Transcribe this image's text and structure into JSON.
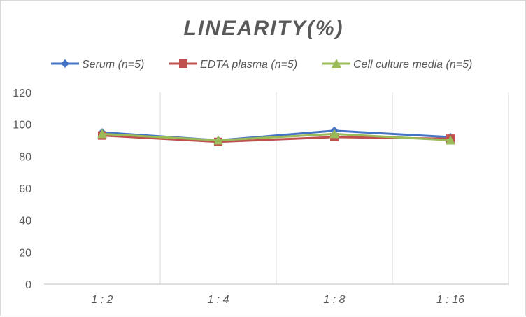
{
  "chart_data": {
    "type": "line",
    "title": "LINEARITY(%)",
    "categories": [
      "1:2",
      "1:4",
      "1:8",
      "1:16"
    ],
    "series": [
      {
        "name": "Serum (n=5)",
        "values": [
          95,
          90,
          96,
          92
        ],
        "color": "#4472c4",
        "marker": "diamond"
      },
      {
        "name": "EDTA plasma (n=5)",
        "values": [
          93,
          89,
          92,
          91
        ],
        "color": "#c0504d",
        "marker": "square"
      },
      {
        "name": "Cell culture media (n=5)",
        "values": [
          94,
          90,
          94,
          90
        ],
        "color": "#9bbb59",
        "marker": "triangle"
      }
    ],
    "ylim": [
      0,
      120
    ],
    "yticks": [
      0,
      20,
      40,
      60,
      80,
      100,
      120
    ],
    "grid": "vertical",
    "legend": "top"
  }
}
